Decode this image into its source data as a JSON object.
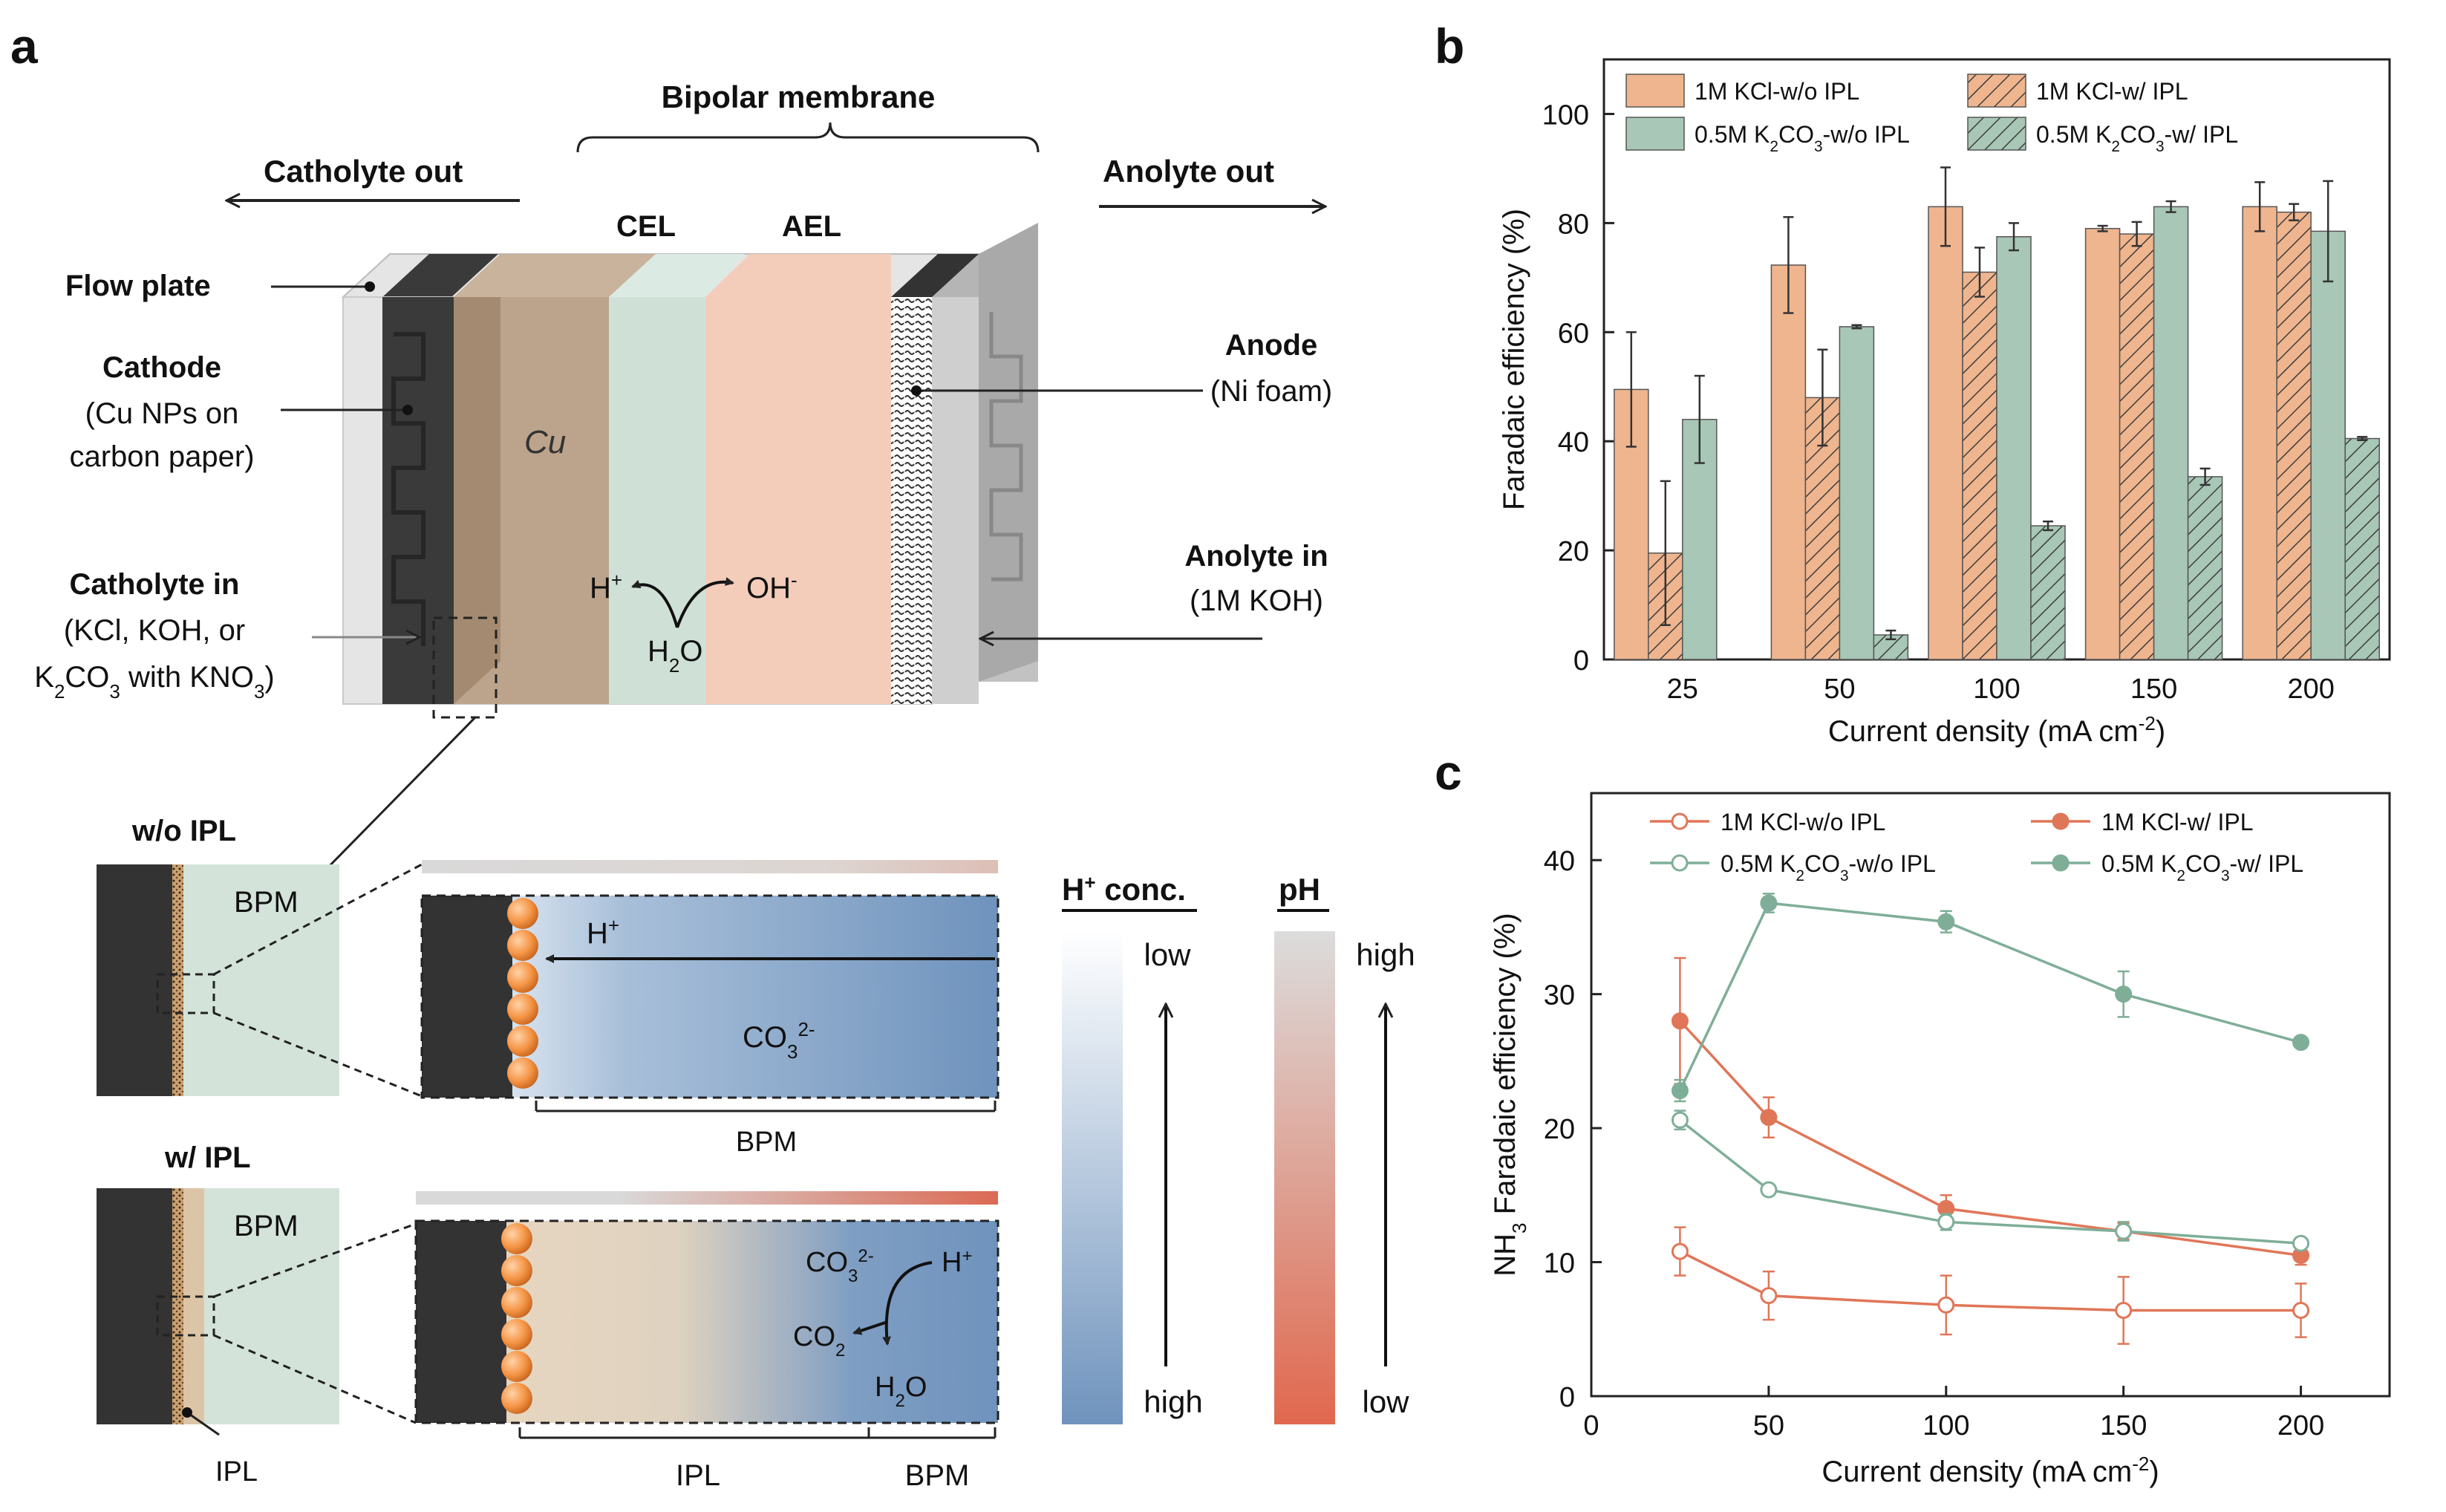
{
  "panel_labels": {
    "a": "a",
    "b": "b",
    "c": "c"
  },
  "panel_a": {
    "bipolar_membrane": "Bipolar membrane",
    "catholyte_out": "Catholyte out",
    "anolyte_out": "Anolyte out",
    "flow_plate": "Flow plate",
    "cathode": "Cathode",
    "cathode_desc_1": "(Cu NPs on",
    "cathode_desc_2": "carbon paper)",
    "catholyte_in": "Catholyte in",
    "catholyte_in_desc_1": "(KCl, KOH, or",
    "catholyte_in_desc_2_pre": "K",
    "catholyte_in_desc_2_sub1": "2",
    "catholyte_in_desc_2_mid": "CO",
    "catholyte_in_desc_2_sub2": "3",
    "catholyte_in_desc_2_mid2": " with KNO",
    "catholyte_in_desc_2_sub3": "3",
    "catholyte_in_desc_2_post": ")",
    "cel": "CEL",
    "ael": "AEL",
    "cu": "Cu",
    "anode": "Anode",
    "anode_desc": "(Ni foam)",
    "anolyte_in": "Anolyte in",
    "anolyte_in_desc": "(1M KOH)",
    "h_plus": "H",
    "h_plus_sup": "+",
    "oh_minus": "OH",
    "oh_minus_sup": "-",
    "water_h": "H",
    "water_sub": "2",
    "water_o": "O",
    "wo_ipl": "w/o IPL",
    "w_ipl": "w/ IPL",
    "bpm": "BPM",
    "ipl": "IPL",
    "co3": "CO",
    "co3_sub": "3",
    "co3_sup": "2-",
    "co2": "CO",
    "co2_sub": "2",
    "h2o_h": "H",
    "h2o_sub": "2",
    "h2o_o": "O",
    "h_conc": "H",
    "h_conc_sup": "+",
    "h_conc_post": " conc.",
    "ph": "pH",
    "low": "low",
    "high": "high"
  },
  "chart_data": [
    {
      "type": "bar",
      "panel": "b",
      "xlabel": "Current density (mA cm",
      "xlabel_sup": "-2",
      "xlabel_post": ")",
      "ylabel": "Faradaic efficiency (%)",
      "categories": [
        "25",
        "50",
        "100",
        "150",
        "200"
      ],
      "ylim": [
        0,
        110
      ],
      "yticks": [
        "0",
        "20",
        "40",
        "60",
        "80",
        "100"
      ],
      "legend_position": "top",
      "series": [
        {
          "name": "1M KCl-w/o IPL",
          "color": "#efb58e",
          "hatch": false,
          "values": [
            49.5,
            72.3,
            83.0,
            79.0,
            83.0
          ],
          "errors": [
            10.5,
            8.8,
            7.2,
            0.5,
            4.5
          ]
        },
        {
          "name": "1M KCl-w/ IPL",
          "color": "#efb58e",
          "hatch": true,
          "values": [
            19.5,
            48.0,
            71.0,
            78.0,
            82.0
          ],
          "errors": [
            13.2,
            8.8,
            4.5,
            2.2,
            1.5
          ]
        },
        {
          "name": "0.5M K2CO3-w/o IPL",
          "color": "#a8c7b6",
          "hatch": false,
          "values": [
            44.0,
            61.0,
            77.5,
            83.0,
            78.5
          ],
          "errors": [
            8.0,
            0.3,
            2.5,
            1.0,
            9.2
          ]
        },
        {
          "name": "0.5M K2CO3-w/ IPL",
          "color": "#a8c7b6",
          "hatch": true,
          "values": [
            0,
            4.5,
            24.5,
            33.5,
            40.5
          ],
          "errors": [
            0,
            0.8,
            0.8,
            1.5,
            0.3
          ]
        }
      ]
    },
    {
      "type": "line",
      "panel": "c",
      "xlabel": "Current density (mA cm",
      "xlabel_sup": "-2",
      "xlabel_post": ")",
      "ylabel_pre": "NH",
      "ylabel_sub": "3",
      "ylabel_post": " Faradaic efficiency (%)",
      "x": [
        25,
        50,
        100,
        150,
        200
      ],
      "xlim": [
        0,
        225
      ],
      "xticks": [
        "0",
        "50",
        "100",
        "150",
        "200"
      ],
      "ylim": [
        0,
        45
      ],
      "yticks": [
        "0",
        "10",
        "20",
        "30",
        "40"
      ],
      "legend_position": "top",
      "series": [
        {
          "name": "1M KCl-w/o IPL",
          "color": "#e07658",
          "filled": false,
          "values": [
            10.8,
            7.5,
            6.8,
            6.4,
            6.4
          ],
          "errors": [
            1.8,
            1.8,
            2.2,
            2.5,
            2.0
          ]
        },
        {
          "name": "1M KCl-w/ IPL",
          "color": "#e07658",
          "filled": true,
          "values": [
            28.0,
            20.8,
            14.0,
            12.3,
            10.5
          ],
          "errors": [
            4.7,
            1.5,
            1.0,
            0.6,
            0.7
          ]
        },
        {
          "name": "0.5M K2CO3-w/o IPL",
          "color": "#7fae98",
          "filled": false,
          "values": [
            20.6,
            15.4,
            13.0,
            12.3,
            11.4
          ],
          "errors": [
            0.7,
            0.3,
            0.6,
            0.7,
            0.4
          ]
        },
        {
          "name": "0.5M K2CO3-w/ IPL",
          "color": "#7fae98",
          "filled": true,
          "values": [
            22.8,
            36.8,
            35.4,
            30.0,
            26.4
          ],
          "errors": [
            0.8,
            0.7,
            0.8,
            1.7,
            0.3
          ]
        }
      ]
    }
  ]
}
